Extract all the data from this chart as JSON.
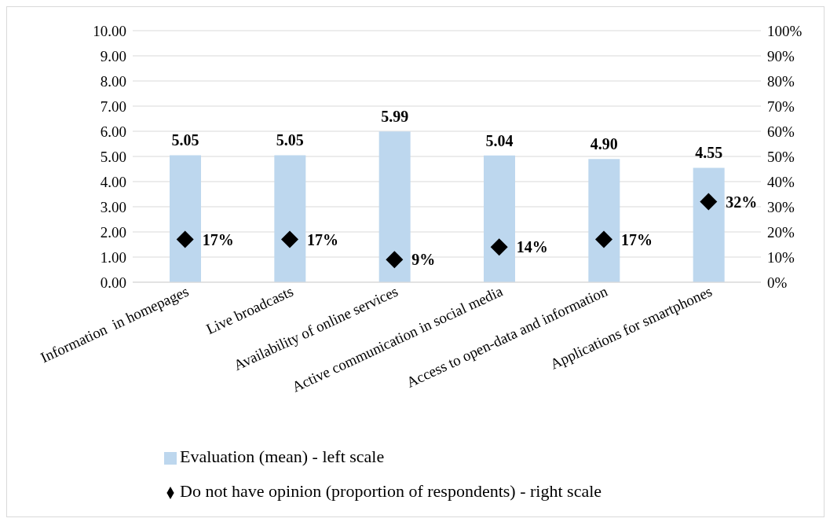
{
  "chart_data": {
    "type": "bar",
    "categories": [
      "Information  in homepages",
      "Live broadcasts",
      "Availability of online services",
      "Active communication in social media",
      "Access to open-data and information",
      "Applications for smartphones"
    ],
    "series": [
      {
        "name": "Evaluation (mean) - left scale",
        "color": "#bdd7ee",
        "values": [
          5.05,
          5.05,
          5.99,
          5.04,
          4.9,
          4.55
        ],
        "value_labels": [
          "5.05",
          "5.05",
          "5.99",
          "5.04",
          "4.90",
          "4.55"
        ]
      },
      {
        "name": "Do not have opinion (proportion of respondents) - right scale",
        "type": "scatter",
        "axis": "y2",
        "color": "#000000",
        "values": [
          17,
          17,
          9,
          14,
          17,
          32
        ],
        "value_labels": [
          "17%",
          "17%",
          "9%",
          "14%",
          "17%",
          "32%"
        ]
      }
    ],
    "ylim": [
      0,
      10
    ],
    "yticks": [
      {
        "value": 0,
        "label": "0.00"
      },
      {
        "value": 1,
        "label": "1.00"
      },
      {
        "value": 2,
        "label": "2.00"
      },
      {
        "value": 3,
        "label": "3.00"
      },
      {
        "value": 4,
        "label": "4.00"
      },
      {
        "value": 5,
        "label": "5.00"
      },
      {
        "value": 6,
        "label": "6.00"
      },
      {
        "value": 7,
        "label": "7.00"
      },
      {
        "value": 8,
        "label": "8.00"
      },
      {
        "value": 9,
        "label": "9.00"
      },
      {
        "value": 10,
        "label": "10.00"
      }
    ],
    "y2lim": [
      0,
      100
    ],
    "y2ticks": [
      {
        "value": 0,
        "label": "0%"
      },
      {
        "value": 10,
        "label": "10%"
      },
      {
        "value": 20,
        "label": "20%"
      },
      {
        "value": 30,
        "label": "30%"
      },
      {
        "value": 40,
        "label": "40%"
      },
      {
        "value": 50,
        "label": "50%"
      },
      {
        "value": 60,
        "label": "60%"
      },
      {
        "value": 70,
        "label": "70%"
      },
      {
        "value": 80,
        "label": "80%"
      },
      {
        "value": 90,
        "label": "90%"
      },
      {
        "value": 100,
        "label": "100%"
      }
    ],
    "grid": "y",
    "legend": "bottom",
    "marker": "diamond"
  }
}
